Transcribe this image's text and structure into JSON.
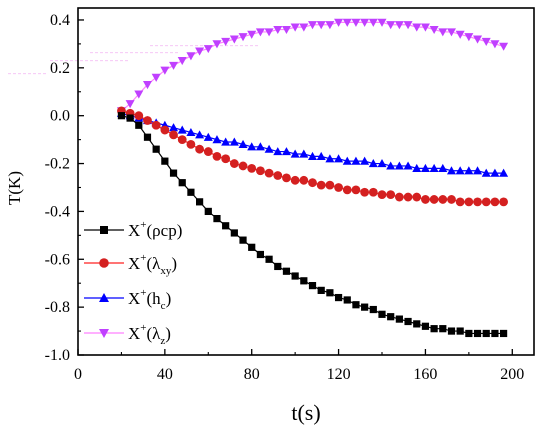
{
  "chart_data": {
    "type": "scatter",
    "xlabel": "t(s)",
    "ylabel": "T(K)",
    "xlim": [
      0,
      210
    ],
    "ylim": [
      -1.0,
      0.45
    ],
    "xticks": [
      "0",
      "40",
      "80",
      "120",
      "160",
      "200"
    ],
    "yticks": [
      "-1.0",
      "-0.8",
      "-0.6",
      "-0.4",
      "-0.2",
      "0.0",
      "0.2",
      "0.4"
    ],
    "grid": false,
    "legend_position": "bottom-left",
    "series": [
      {
        "name": "X⁺(ρcp)",
        "legend_base": "X",
        "legend_sup": "+",
        "legend_arg": "(ρcp)",
        "legend_sub": "",
        "legend_close": "",
        "marker": "square",
        "color": "#000000",
        "line_color": "#000000",
        "x": [
          20,
          24,
          28,
          32,
          36,
          40,
          44,
          48,
          52,
          56,
          60,
          64,
          68,
          72,
          76,
          80,
          84,
          88,
          92,
          96,
          100,
          104,
          108,
          112,
          116,
          120,
          124,
          128,
          132,
          136,
          140,
          144,
          148,
          152,
          156,
          160,
          164,
          168,
          172,
          176,
          180,
          184,
          188,
          192,
          196
        ],
        "y": [
          0.0,
          -0.01,
          -0.04,
          -0.09,
          -0.14,
          -0.19,
          -0.24,
          -0.28,
          -0.32,
          -0.36,
          -0.4,
          -0.43,
          -0.46,
          -0.49,
          -0.52,
          -0.55,
          -0.58,
          -0.6,
          -0.63,
          -0.65,
          -0.67,
          -0.69,
          -0.71,
          -0.73,
          -0.74,
          -0.76,
          -0.77,
          -0.79,
          -0.8,
          -0.81,
          -0.83,
          -0.84,
          -0.85,
          -0.86,
          -0.87,
          -0.88,
          -0.89,
          -0.89,
          -0.9,
          -0.9,
          -0.91,
          -0.91,
          -0.91,
          -0.91,
          -0.91
        ]
      },
      {
        "name": "X⁺(λxy)",
        "legend_base": "X",
        "legend_sup": "+",
        "legend_arg": "(λ",
        "legend_sub": "xy",
        "legend_close": ")",
        "marker": "circle",
        "color": "#d42020",
        "line_color": "#ff2020",
        "x": [
          20,
          24,
          28,
          32,
          36,
          40,
          44,
          48,
          52,
          56,
          60,
          64,
          68,
          72,
          76,
          80,
          84,
          88,
          92,
          96,
          100,
          104,
          108,
          112,
          116,
          120,
          124,
          128,
          132,
          136,
          140,
          144,
          148,
          152,
          156,
          160,
          164,
          168,
          172,
          176,
          180,
          184,
          188,
          192,
          196
        ],
        "y": [
          0.02,
          0.01,
          0.0,
          -0.02,
          -0.04,
          -0.06,
          -0.08,
          -0.1,
          -0.12,
          -0.14,
          -0.15,
          -0.17,
          -0.18,
          -0.2,
          -0.21,
          -0.22,
          -0.23,
          -0.24,
          -0.25,
          -0.26,
          -0.27,
          -0.27,
          -0.28,
          -0.29,
          -0.29,
          -0.3,
          -0.31,
          -0.31,
          -0.32,
          -0.32,
          -0.33,
          -0.33,
          -0.34,
          -0.34,
          -0.34,
          -0.35,
          -0.35,
          -0.35,
          -0.35,
          -0.36,
          -0.36,
          -0.36,
          -0.36,
          -0.36,
          -0.36
        ]
      },
      {
        "name": "X⁺(hc)",
        "legend_base": "X",
        "legend_sup": "+",
        "legend_arg": "(h",
        "legend_sub": "c",
        "legend_close": ")",
        "marker": "triangle-up",
        "color": "#0000ff",
        "line_color": "#0000ff",
        "x": [
          20,
          24,
          28,
          32,
          36,
          40,
          44,
          48,
          52,
          56,
          60,
          64,
          68,
          72,
          76,
          80,
          84,
          88,
          92,
          96,
          100,
          104,
          108,
          112,
          116,
          120,
          124,
          128,
          132,
          136,
          140,
          144,
          148,
          152,
          156,
          160,
          164,
          168,
          172,
          176,
          180,
          184,
          188,
          192,
          196
        ],
        "y": [
          0.01,
          0.0,
          -0.01,
          -0.02,
          -0.03,
          -0.04,
          -0.05,
          -0.06,
          -0.07,
          -0.08,
          -0.09,
          -0.1,
          -0.11,
          -0.11,
          -0.12,
          -0.13,
          -0.13,
          -0.14,
          -0.15,
          -0.15,
          -0.16,
          -0.16,
          -0.17,
          -0.17,
          -0.18,
          -0.18,
          -0.19,
          -0.19,
          -0.19,
          -0.2,
          -0.2,
          -0.21,
          -0.21,
          -0.21,
          -0.22,
          -0.22,
          -0.22,
          -0.22,
          -0.23,
          -0.23,
          -0.23,
          -0.23,
          -0.24,
          -0.24,
          -0.24
        ]
      },
      {
        "name": "X⁺(λz)",
        "legend_base": "X",
        "legend_sup": "+",
        "legend_arg": "(λ",
        "legend_sub": "z",
        "legend_close": ")",
        "marker": "triangle-down",
        "color": "#c040ff",
        "line_color": "#ff80ff",
        "x": [
          20,
          24,
          28,
          32,
          36,
          40,
          44,
          48,
          52,
          56,
          60,
          64,
          68,
          72,
          76,
          80,
          84,
          88,
          92,
          96,
          100,
          104,
          108,
          112,
          116,
          120,
          124,
          128,
          132,
          136,
          140,
          144,
          148,
          152,
          156,
          160,
          164,
          168,
          172,
          176,
          180,
          184,
          188,
          192,
          196
        ],
        "y": [
          0.02,
          0.05,
          0.09,
          0.13,
          0.16,
          0.19,
          0.21,
          0.23,
          0.25,
          0.27,
          0.28,
          0.3,
          0.31,
          0.32,
          0.33,
          0.34,
          0.35,
          0.35,
          0.36,
          0.36,
          0.37,
          0.37,
          0.38,
          0.38,
          0.38,
          0.39,
          0.39,
          0.39,
          0.39,
          0.39,
          0.39,
          0.38,
          0.38,
          0.38,
          0.37,
          0.37,
          0.36,
          0.35,
          0.35,
          0.34,
          0.33,
          0.32,
          0.31,
          0.3,
          0.29
        ]
      }
    ]
  }
}
